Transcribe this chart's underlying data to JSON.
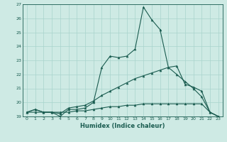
{
  "xlabel": "Humidex (Indice chaleur)",
  "background_color": "#ceeae4",
  "line_color": "#1a5c50",
  "grid_color": "#a8d4cc",
  "xlim": [
    -0.5,
    23.5
  ],
  "ylim": [
    19.0,
    27.0
  ],
  "yticks": [
    19,
    20,
    21,
    22,
    23,
    24,
    25,
    26,
    27
  ],
  "xticks": [
    0,
    1,
    2,
    3,
    4,
    5,
    6,
    7,
    8,
    9,
    10,
    11,
    12,
    13,
    14,
    15,
    16,
    17,
    18,
    19,
    20,
    21,
    22,
    23
  ],
  "series": [
    [
      19.3,
      19.5,
      19.3,
      19.3,
      19.0,
      19.5,
      19.5,
      19.6,
      20.0,
      22.5,
      23.3,
      23.2,
      23.3,
      23.8,
      26.8,
      25.9,
      25.2,
      22.5,
      22.0,
      21.5,
      21.0,
      20.4,
      19.3,
      19.0
    ],
    [
      19.3,
      19.5,
      19.3,
      19.3,
      19.2,
      19.6,
      19.7,
      19.8,
      20.1,
      20.5,
      20.8,
      21.1,
      21.4,
      21.7,
      21.9,
      22.1,
      22.3,
      22.5,
      22.6,
      21.3,
      21.1,
      20.8,
      19.3,
      19.0
    ],
    [
      19.3,
      19.3,
      19.3,
      19.3,
      19.3,
      19.3,
      19.4,
      19.4,
      19.5,
      19.6,
      19.7,
      19.7,
      19.8,
      19.8,
      19.9,
      19.9,
      19.9,
      19.9,
      19.9,
      19.9,
      19.9,
      19.9,
      19.3,
      19.0
    ]
  ]
}
